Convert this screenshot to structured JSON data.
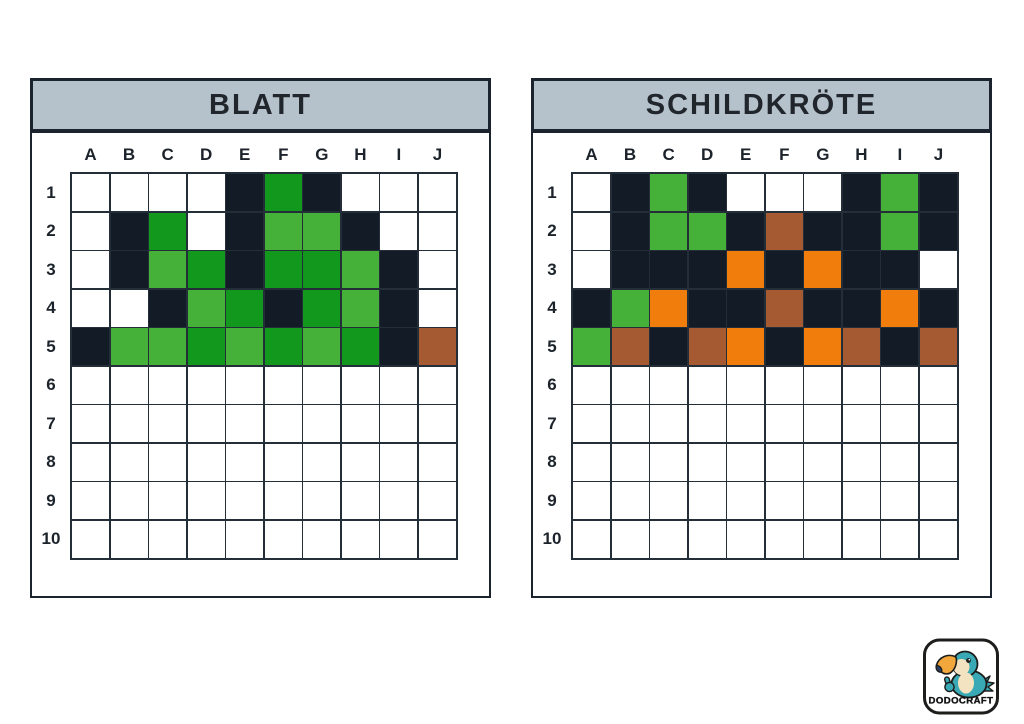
{
  "palette": {
    "W": "#ffffff",
    "K": "#131c26",
    "G": "#12991d",
    "L": "#46b138",
    "O": "#f17d0d",
    "B": "#a55a32"
  },
  "colors": {
    "header_bg": "#b6c2cb",
    "border": "#1b242e",
    "grid_line": "#242e38"
  },
  "panels": [
    {
      "id": "blatt",
      "title": "BLATT",
      "columns": [
        "A",
        "B",
        "C",
        "D",
        "E",
        "F",
        "G",
        "H",
        "I",
        "J"
      ],
      "rows": [
        "1",
        "2",
        "3",
        "4",
        "5",
        "6",
        "7",
        "8",
        "9",
        "10"
      ],
      "cells": [
        "WWWWKGKWWW",
        "WKGWKLLKWW",
        "WKLGKGGLKW",
        "WWKLGKGLKW",
        "KLLGLGLGKB",
        "WWWWWWWWWW",
        "WWWWWWWWWW",
        "WWWWWWWWWW",
        "WWWWWWWWWW",
        "WWWWWWWWWW"
      ]
    },
    {
      "id": "schildkroete",
      "title": "SCHILDKRÖTE",
      "columns": [
        "A",
        "B",
        "C",
        "D",
        "E",
        "F",
        "G",
        "H",
        "I",
        "J"
      ],
      "rows": [
        "1",
        "2",
        "3",
        "4",
        "5",
        "6",
        "7",
        "8",
        "9",
        "10"
      ],
      "cells": [
        "WKLKWWWKLK",
        "WKLLKBKKLK",
        "WKKKOKOKKW",
        "KLOKKBKKOK",
        "LBKBOKOBKB",
        "WWWWWWWWWW",
        "WWWWWWWWWW",
        "WWWWWWWWWW",
        "WWWWWWWWWW",
        "WWWWWWWWWW"
      ]
    }
  ],
  "logo": {
    "text": "DODOCRAFT",
    "body_color": "#3aa9b6",
    "face_color": "#f4e3c0",
    "beak_color": "#f2a73c",
    "beak_tip_color": "#2c3e63"
  }
}
